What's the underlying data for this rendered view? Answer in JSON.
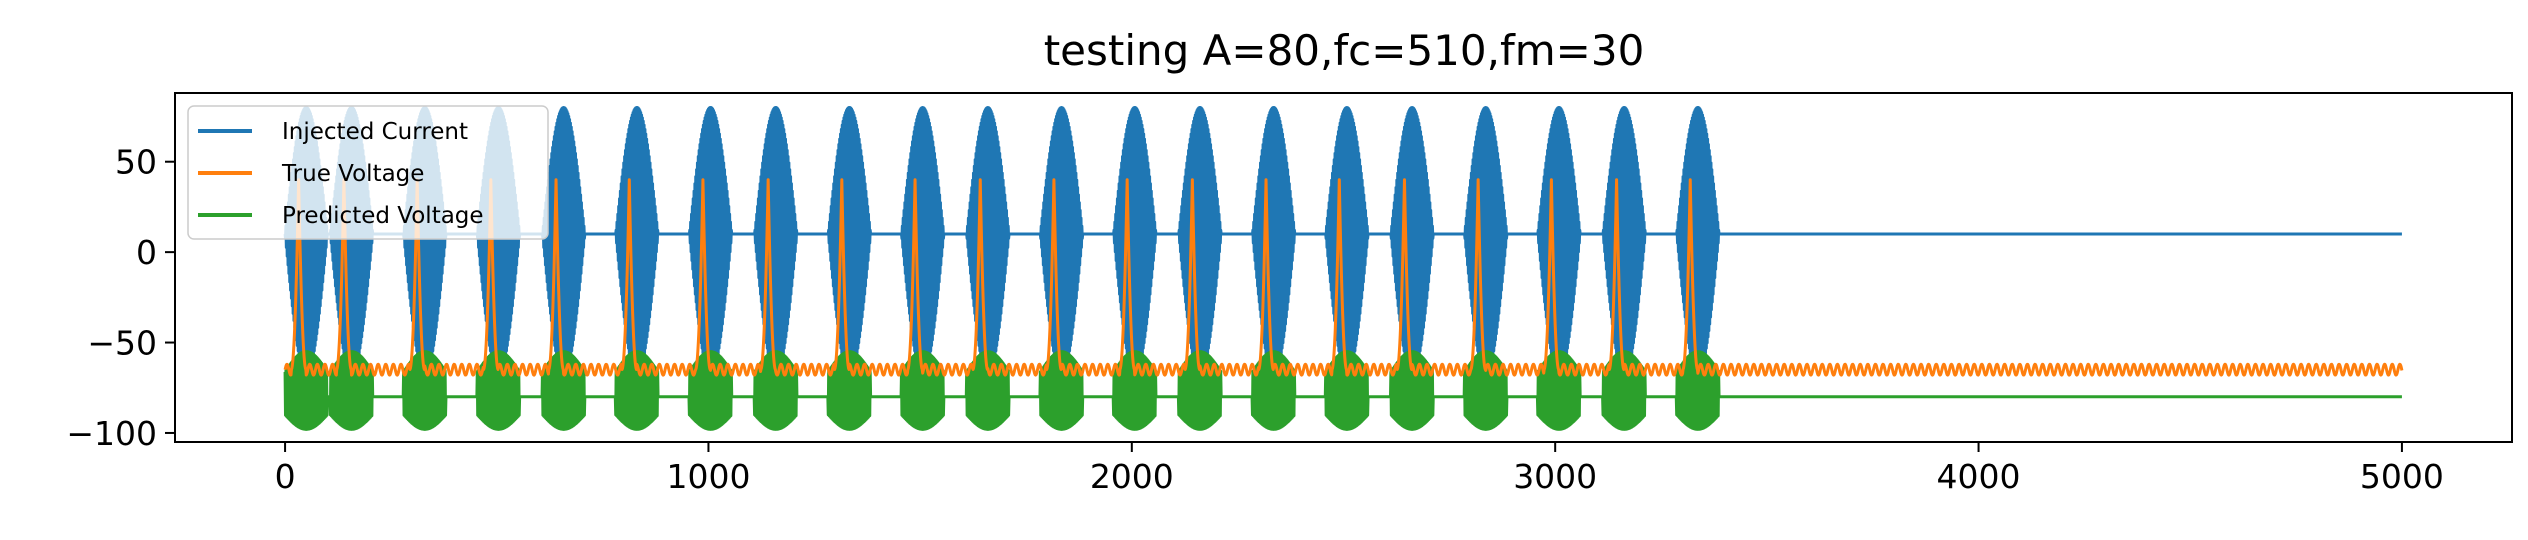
{
  "chart_data": {
    "type": "line",
    "title": "testing A=80,fc=510,fm=30",
    "xlabel": "",
    "ylabel": "",
    "xlim": [
      -260,
      5260
    ],
    "ylim": [
      -105,
      88
    ],
    "x_ticks": [
      0,
      1000,
      2000,
      3000,
      4000,
      5000
    ],
    "x_tick_labels": [
      "0",
      "1000",
      "2000",
      "3000",
      "4000",
      "5000"
    ],
    "y_ticks": [
      50,
      0,
      -50,
      -100
    ],
    "y_tick_labels": [
      "50",
      "0",
      "−50",
      "−100"
    ],
    "grid": false,
    "legend_position": "upper-left",
    "n_samples": 5000,
    "bursts": {
      "period": 167,
      "onset": [
        0,
        20,
        26,
        33,
        40,
        46,
        53,
        60,
        67,
        73,
        80,
        87,
        93,
        100,
        107,
        113,
        120,
        127,
        133,
        140,
        147
      ],
      "rise_to_peak": 60
    },
    "series": [
      {
        "name": "Injected Current",
        "color": "#1f77b4",
        "baseline": 10,
        "burst_max": 80,
        "burst_min": -68,
        "burst_length": 100
      },
      {
        "name": "True Voltage",
        "color": "#ff7f0e",
        "baseline": -65,
        "spike_peak": 40,
        "spike_length": 35
      },
      {
        "name": "Predicted Voltage",
        "color": "#2ca02c",
        "baseline": -80,
        "burst_max": -55,
        "burst_min": -98,
        "burst_length": 100
      }
    ]
  }
}
